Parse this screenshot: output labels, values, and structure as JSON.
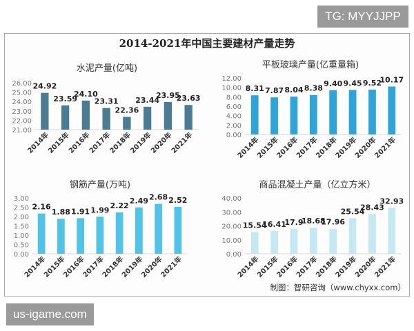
{
  "badges": {
    "top_right": "TG: MYYJJPP",
    "bottom_left": "us-igame.com"
  },
  "title": "2014-2021年中国主要建材产量走势",
  "source": "制图：智研咨询（www.chyxx.com）",
  "watermark": "智研咨询 www.chyxx.com",
  "chart_data": [
    {
      "type": "bar",
      "title": "水泥产量(亿吨)",
      "categories": [
        "2014年",
        "2015年",
        "2016年",
        "2017年",
        "2018年",
        "2019年",
        "2020年",
        "2021年"
      ],
      "values": [
        24.92,
        23.59,
        24.1,
        23.31,
        22.36,
        23.44,
        23.95,
        23.63
      ],
      "labels": [
        "24.92",
        "23.59",
        "24.10",
        "23.31",
        "22.36",
        "23.44",
        "23.95",
        "23.63"
      ],
      "ylim": [
        21,
        26
      ],
      "yticks": [
        "21.00",
        "22.00",
        "23.00",
        "24.00",
        "25.00",
        "26.00"
      ],
      "color": "#4a7d93",
      "grid": false
    },
    {
      "type": "bar",
      "title": "平板玻璃产量(亿重量箱)",
      "categories": [
        "2014年",
        "2015年",
        "2016年",
        "2017年",
        "2018年",
        "2019年",
        "2020年",
        "2021年"
      ],
      "values": [
        8.31,
        7.87,
        8.04,
        8.38,
        9.4,
        9.45,
        9.52,
        10.17
      ],
      "labels": [
        "8.31",
        "7.87",
        "8.04",
        "8.38",
        "9.40",
        "9.45",
        "9.52",
        "10.17"
      ],
      "ylim": [
        0,
        12
      ],
      "yticks": [
        "0.00",
        "2.00",
        "4.00",
        "6.00",
        "8.00",
        "10.00",
        "12.00"
      ],
      "color": "#2ea5d8",
      "grid": false
    },
    {
      "type": "bar",
      "title": "钢筋产量(万吨)",
      "categories": [
        "2014年",
        "2015年",
        "2016年",
        "2017年",
        "2018年",
        "2019年",
        "2020年",
        "2021年"
      ],
      "values": [
        2.16,
        1.88,
        1.91,
        1.99,
        2.22,
        2.49,
        2.68,
        2.52
      ],
      "labels": [
        "2.16",
        "1.88",
        "1.91",
        "1.99",
        "2.22",
        "2.49",
        "2.68",
        "2.52"
      ],
      "ylim": [
        0,
        3
      ],
      "yticks": [
        "0.00",
        "0.50",
        "1.00",
        "1.50",
        "2.00",
        "2.50",
        "3.00"
      ],
      "color": "#4fc3e8",
      "grid": false
    },
    {
      "type": "bar",
      "title": "商品混凝土产量（亿立方米）",
      "categories": [
        "2014年",
        "2015年",
        "2016年",
        "2017年",
        "2018年",
        "2019年",
        "2020年",
        "2021年"
      ],
      "values": [
        15.54,
        16.41,
        17.9,
        18.68,
        17.96,
        25.54,
        28.43,
        32.93
      ],
      "labels": [
        "15.54",
        "16.41",
        "17.9",
        "18.68",
        "17.96",
        "25.54",
        "28.43",
        "32.93"
      ],
      "ylim": [
        0,
        40
      ],
      "yticks": [
        "0.00",
        "10.00",
        "20.00",
        "30.00",
        "40.00"
      ],
      "color": "#c6e8f3",
      "grid": false
    }
  ]
}
